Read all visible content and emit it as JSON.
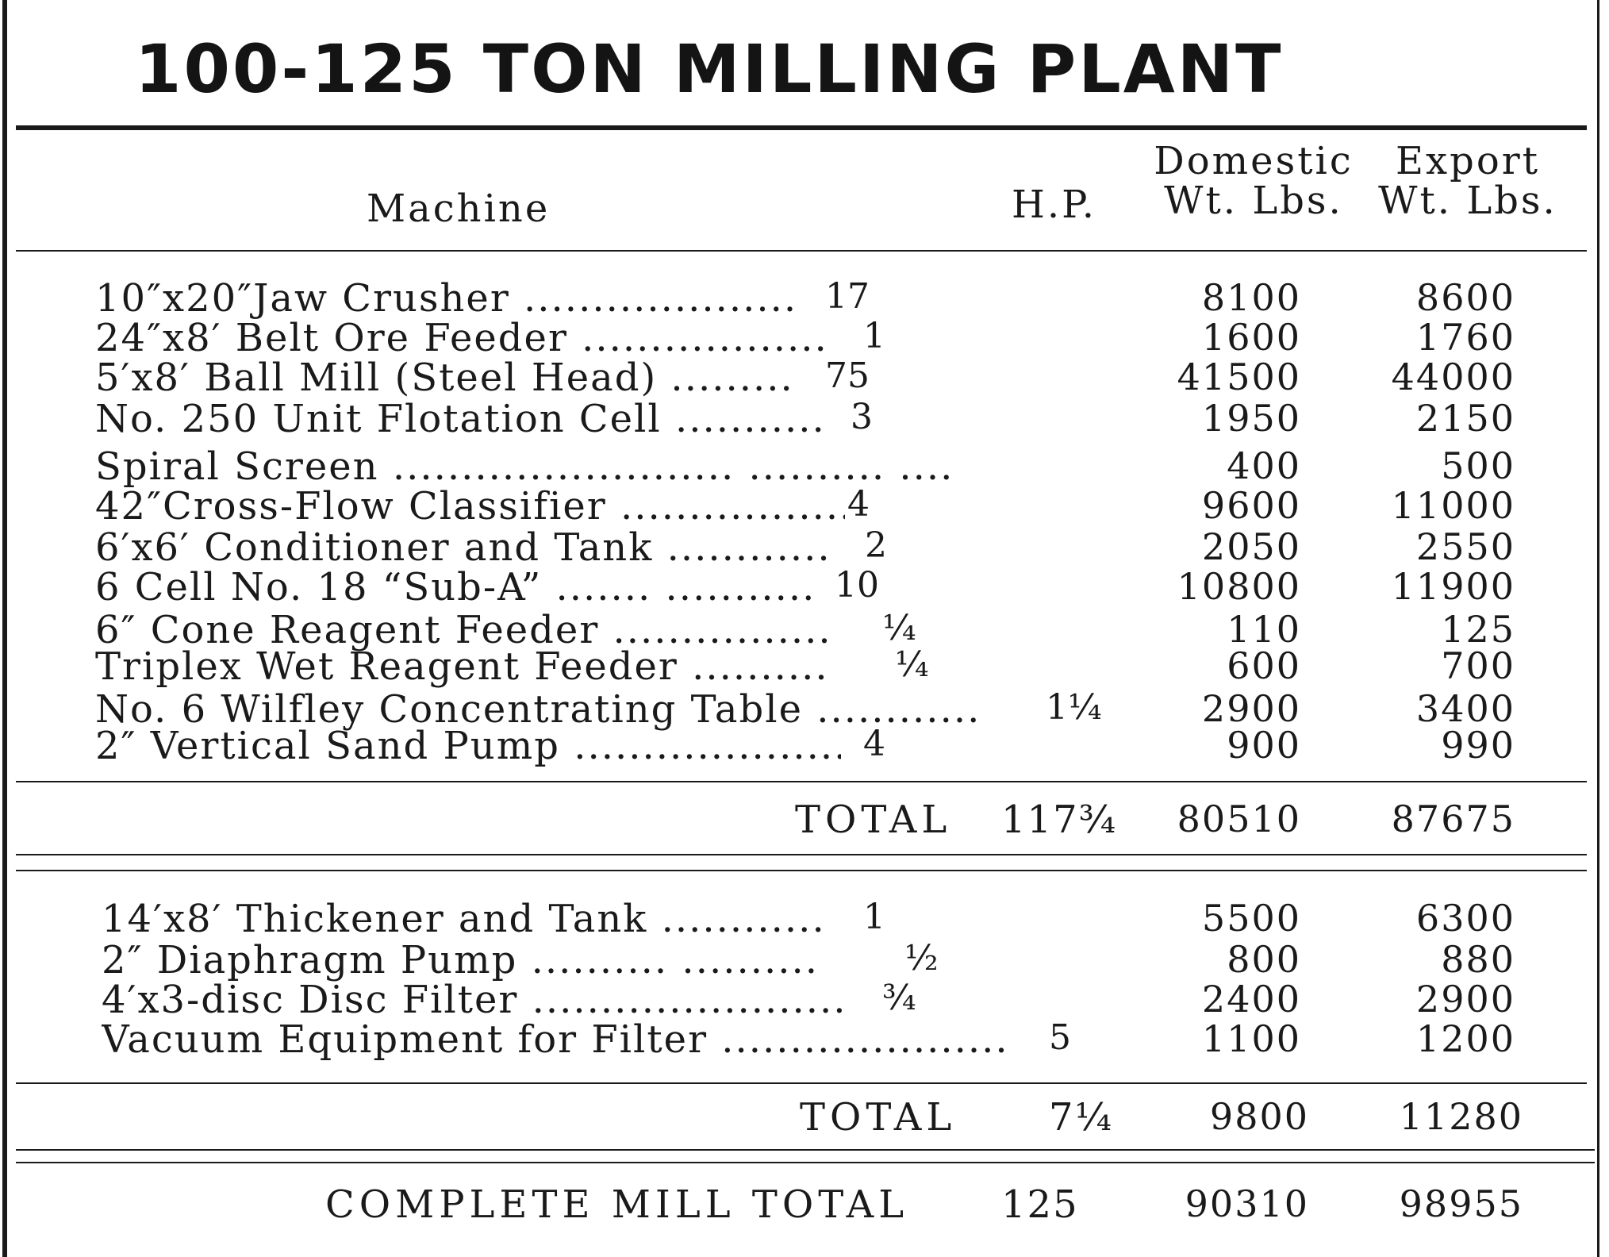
{
  "title": "100-125 TON MILLING PLANT",
  "headers": {
    "machine": "Machine",
    "hp": "H.P.",
    "domestic_line1": "Domestic",
    "domestic_line2": "Wt. Lbs.",
    "export_line1": "Export",
    "export_line2": "Wt. Lbs."
  },
  "section1": {
    "rows": [
      {
        "machine": "10″x20″Jaw Crusher ....................",
        "hp": "17",
        "domestic": "8100",
        "export": "8600"
      },
      {
        "machine": "24″x8′ Belt Ore Feeder ..................",
        "hp": "1",
        "domestic": "1600",
        "export": "1760"
      },
      {
        "machine": "5′x8′ Ball Mill (Steel Head) .........",
        "hp": "75",
        "domestic": "41500",
        "export": "44000"
      },
      {
        "machine": "No. 250 Unit Flotation Cell ...........",
        "hp": "3",
        "domestic": "1950",
        "export": "2150"
      },
      {
        "machine": "Spiral Screen ......................... .......... ......",
        "hp": "",
        "domestic": "400",
        "export": "500"
      },
      {
        "machine": "42″Cross-Flow Classifier ..................",
        "hp": "4",
        "domestic": "9600",
        "export": "11000"
      },
      {
        "machine": "6′x6′ Conditioner and Tank ............",
        "hp": "2",
        "domestic": "2050",
        "export": "2550"
      },
      {
        "machine": "6 Cell No. 18 “Sub-A” ....... ...........",
        "hp": "10",
        "domestic": "10800",
        "export": "11900"
      },
      {
        "machine": "6″ Cone Reagent Feeder ................",
        "hp": "¼",
        "domestic": "110",
        "export": "125"
      },
      {
        "machine": "Triplex Wet Reagent Feeder ..........",
        "hp": "¼",
        "domestic": "600",
        "export": "700"
      },
      {
        "machine": "No. 6 Wilfley Concentrating Table ............",
        "hp": "1¼",
        "domestic": "2900",
        "export": "3400"
      },
      {
        "machine": "2″ Vertical Sand Pump ....................",
        "hp": "4",
        "domestic": "900",
        "export": "990"
      }
    ],
    "total_label": "TOTAL",
    "total_hp": "117¾",
    "total_domestic": "80510",
    "total_export": "87675"
  },
  "section2": {
    "rows": [
      {
        "machine": "14′x8′ Thickener and Tank ............",
        "hp": "1",
        "domestic": "5500",
        "export": "6300"
      },
      {
        "machine": "2″ Diaphragm Pump .......... ..........",
        "hp": "½",
        "domestic": "800",
        "export": "880"
      },
      {
        "machine": "4′x3-disc Disc Filter .......................",
        "hp": "¾",
        "domestic": "2400",
        "export": "2900"
      },
      {
        "machine": "Vacuum Equipment for Filter .....................",
        "hp": "5",
        "domestic": "1100",
        "export": "1200"
      }
    ],
    "total_label": "TOTAL",
    "total_hp": "7¼",
    "total_domestic": "9800",
    "total_export": "11280"
  },
  "grand_total": {
    "label": "COMPLETE MILL TOTAL",
    "hp": "125",
    "domestic": "90310",
    "export": "98955"
  }
}
